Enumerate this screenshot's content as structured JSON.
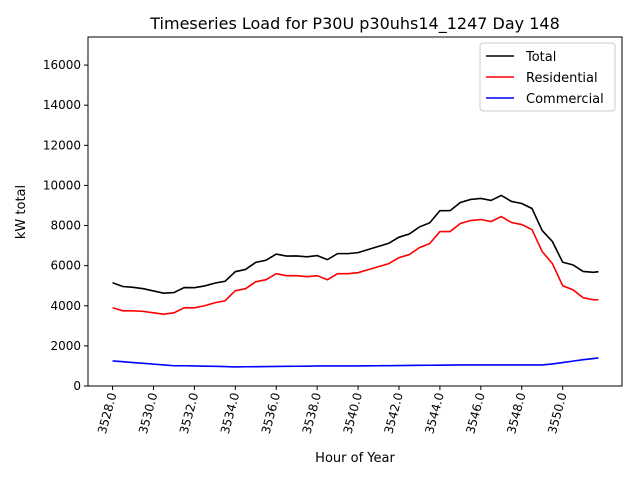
{
  "chart_data": {
    "type": "line",
    "title": "Timeseries Load for P30U p30uhs14_1247  Day 148",
    "xlabel": "Hour of Year",
    "ylabel": "kW total",
    "xlim": [
      3526.8,
      3552.9
    ],
    "ylim": [
      0,
      17400
    ],
    "xticks": [
      3528,
      3530,
      3532,
      3534,
      3536,
      3538,
      3540,
      3542,
      3544,
      3546,
      3548,
      3550
    ],
    "xtick_labels": [
      "3528.0",
      "3530.0",
      "3532.0",
      "3534.0",
      "3536.0",
      "3538.0",
      "3540.0",
      "3542.0",
      "3544.0",
      "3546.0",
      "3548.0",
      "3550.0"
    ],
    "yticks": [
      0,
      2000,
      4000,
      6000,
      8000,
      10000,
      12000,
      14000,
      16000
    ],
    "ytick_labels": [
      "0",
      "2000",
      "4000",
      "6000",
      "8000",
      "10000",
      "12000",
      "14000",
      "16000"
    ],
    "grid": false,
    "legend_position": "top-right",
    "x": [
      3528,
      3528.5,
      3529,
      3529.5,
      3530,
      3530.5,
      3531,
      3531.5,
      3532,
      3532.5,
      3533,
      3533.5,
      3534,
      3534.5,
      3535,
      3535.5,
      3536,
      3536.5,
      3537,
      3537.5,
      3538,
      3538.5,
      3539,
      3539.5,
      3540,
      3540.5,
      3541,
      3541.5,
      3542,
      3542.5,
      3543,
      3543.5,
      3544,
      3544.5,
      3545,
      3545.5,
      3546,
      3546.5,
      3547,
      3547.5,
      3548,
      3548.5,
      3549,
      3549.5,
      3550,
      3550.5,
      3551,
      3551.5,
      3551.75
    ],
    "series": [
      {
        "name": "Total",
        "color": "#000000",
        "values": [
          5150,
          4960,
          4920,
          4850,
          4740,
          4630,
          4660,
          4910,
          4900,
          4990,
          5130,
          5220,
          5700,
          5810,
          6165,
          6270,
          6575,
          6480,
          6485,
          6440,
          6500,
          6300,
          6600,
          6600,
          6650,
          6805,
          6960,
          7115,
          7420,
          7575,
          7930,
          8135,
          8740,
          8745,
          9150,
          9300,
          9350,
          9250,
          9500,
          9200,
          9100,
          8850,
          7750,
          7200,
          6170,
          6040,
          5710,
          5670,
          5700
        ]
      },
      {
        "name": "Residential",
        "color": "#ff0000",
        "values": [
          3900,
          3750,
          3750,
          3720,
          3650,
          3580,
          3650,
          3900,
          3900,
          4000,
          4150,
          4250,
          4750,
          4850,
          5200,
          5300,
          5600,
          5500,
          5500,
          5450,
          5500,
          5300,
          5600,
          5600,
          5650,
          5800,
          5950,
          6100,
          6400,
          6550,
          6900,
          7100,
          7700,
          7700,
          8100,
          8250,
          8300,
          8200,
          8450,
          8150,
          8050,
          7800,
          6700,
          6100,
          5000,
          4800,
          4400,
          4300,
          4300
        ]
      },
      {
        "name": "Commercial",
        "color": "#0000ff",
        "values": [
          1250,
          1210,
          1170,
          1130,
          1090,
          1050,
          1010,
          1010,
          1000,
          990,
          980,
          970,
          950,
          960,
          965,
          970,
          975,
          980,
          985,
          990,
          1000,
          1000,
          1000,
          1000,
          1000,
          1005,
          1010,
          1015,
          1020,
          1025,
          1030,
          1035,
          1040,
          1045,
          1050,
          1050,
          1050,
          1050,
          1050,
          1050,
          1050,
          1050,
          1050,
          1100,
          1170,
          1240,
          1310,
          1370,
          1400
        ]
      }
    ]
  }
}
